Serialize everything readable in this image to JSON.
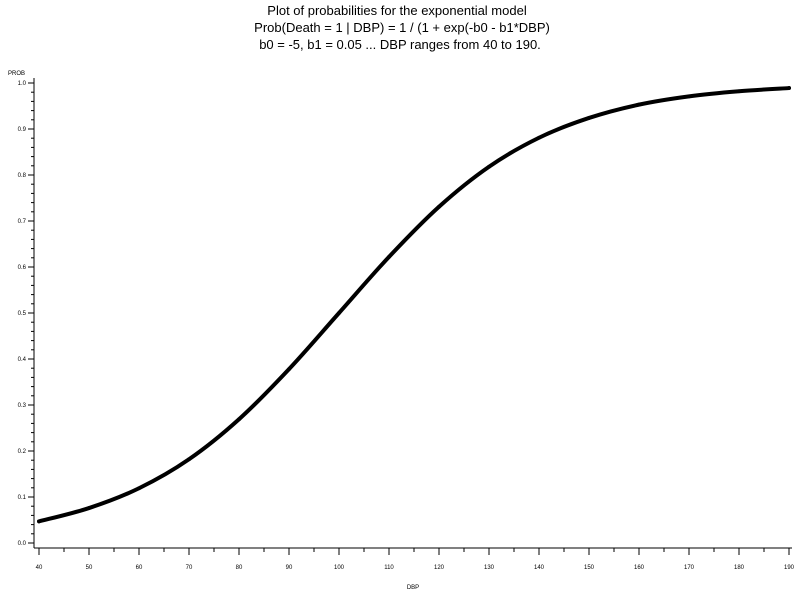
{
  "chart_data": {
    "type": "line",
    "title": [
      "Plot of probabilities for the exponential model",
      "Prob(Death = 1 | DBP) = 1 / (1 + exp(-b0 - b1*DBP)",
      "b0 = -5, b1 = 0.05 ... DBP ranges from 40 to 190."
    ],
    "xlabel": "DBP",
    "ylabel": "PROB",
    "xlim": [
      40,
      190
    ],
    "ylim": [
      0,
      1
    ],
    "xticks": [
      "40",
      "50",
      "60",
      "70",
      "80",
      "90",
      "100",
      "110",
      "120",
      "130",
      "140",
      "150",
      "160",
      "170",
      "180",
      "190"
    ],
    "yticks": [
      "0.0",
      "0.1",
      "0.2",
      "0.3",
      "0.4",
      "0.5",
      "0.6",
      "0.7",
      "0.8",
      "0.9",
      "1.0"
    ],
    "grid": false,
    "legend": "none",
    "series": [
      {
        "x": [
          40,
          50,
          60,
          70,
          80,
          90,
          100,
          110,
          120,
          130,
          140,
          150,
          160,
          170,
          180,
          190
        ],
        "y": [
          0.047,
          0.076,
          0.119,
          0.182,
          0.269,
          0.378,
          0.5,
          0.622,
          0.731,
          0.818,
          0.881,
          0.924,
          0.953,
          0.971,
          0.982,
          0.989
        ],
        "color": "#000000"
      }
    ]
  }
}
